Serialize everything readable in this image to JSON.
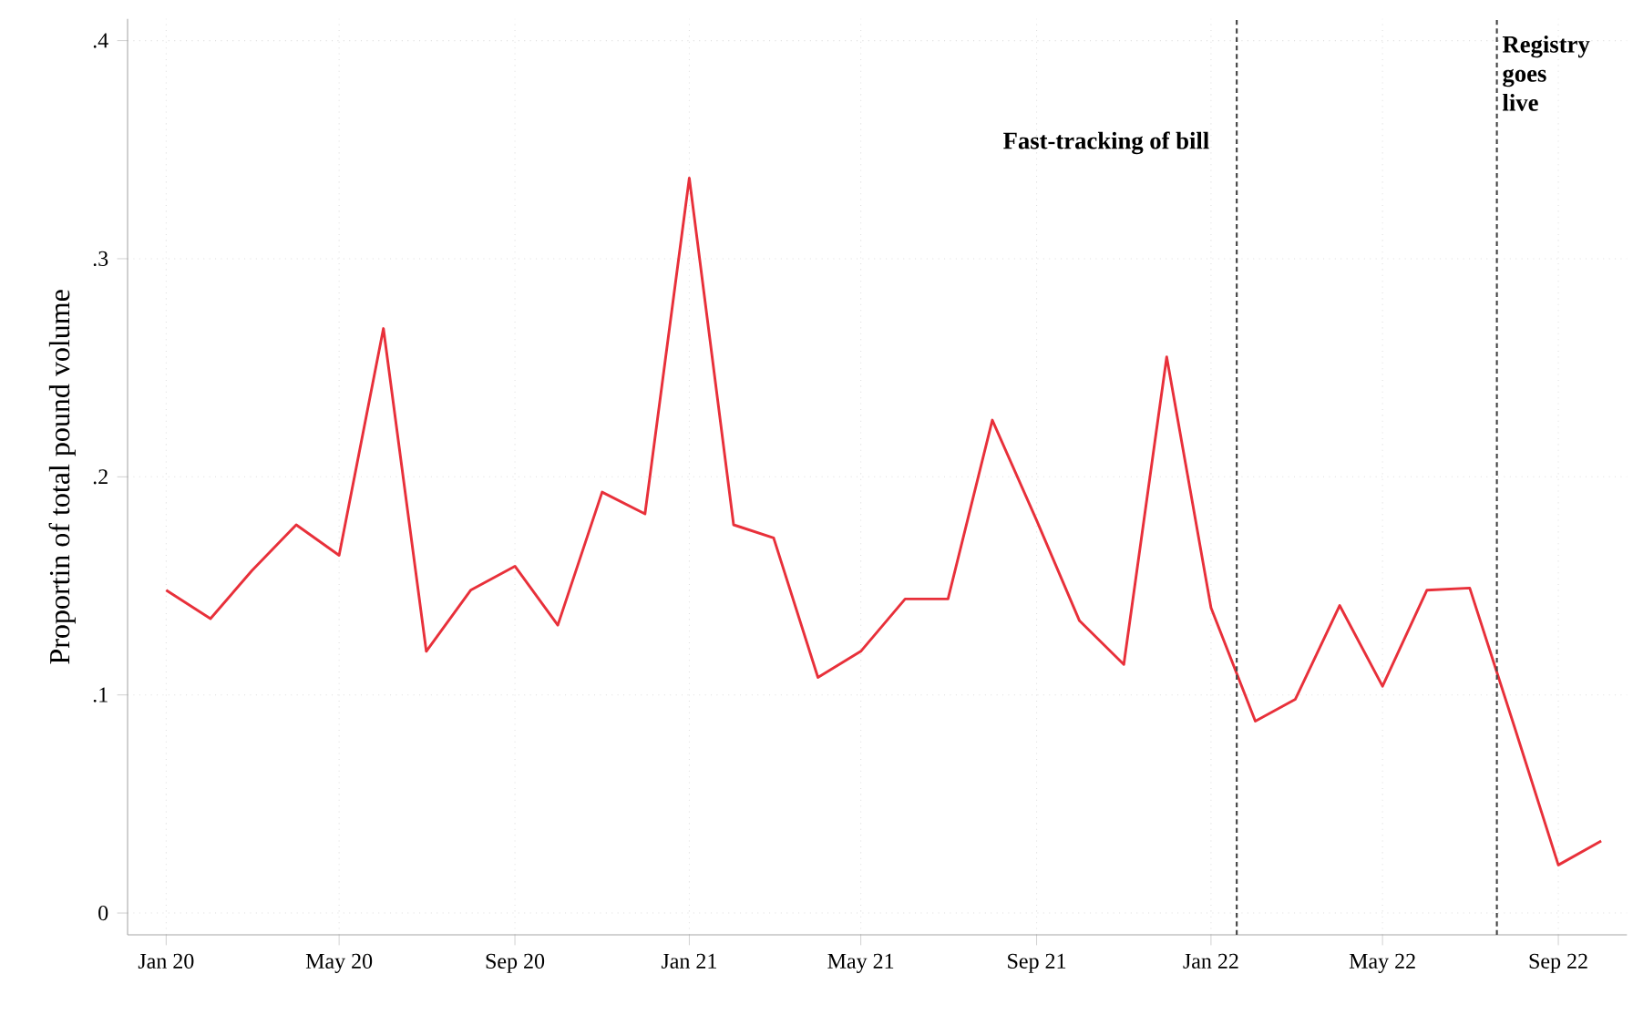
{
  "chart_data": {
    "type": "line",
    "ylabel": "Proportin of total pound volume",
    "x": [
      "2020-01",
      "2020-02",
      "2020-03",
      "2020-04",
      "2020-05",
      "2020-06",
      "2020-07",
      "2020-08",
      "2020-09",
      "2020-10",
      "2020-11",
      "2020-12",
      "2021-01",
      "2021-02",
      "2021-03",
      "2021-04",
      "2021-05",
      "2021-06",
      "2021-07",
      "2021-08",
      "2021-09",
      "2021-10",
      "2021-11",
      "2021-12",
      "2022-01",
      "2022-02",
      "2022-03",
      "2022-04",
      "2022-05",
      "2022-06",
      "2022-07",
      "2022-08",
      "2022-09",
      "2022-10"
    ],
    "series": [
      {
        "color": "#e8303a",
        "values": [
          0.148,
          0.135,
          0.157,
          0.178,
          0.164,
          0.268,
          0.12,
          0.148,
          0.159,
          0.132,
          0.193,
          0.183,
          0.337,
          0.178,
          0.172,
          0.108,
          0.12,
          0.144,
          0.144,
          0.226,
          0.18,
          0.134,
          0.114,
          0.255,
          0.14,
          0.088,
          0.098,
          0.141,
          0.104,
          0.148,
          0.149,
          0.086,
          0.022,
          0.033
        ]
      }
    ],
    "xlim": [
      "2019-12-05",
      "2022-10-19"
    ],
    "xticks": [
      {
        "value": "2020-01",
        "label": "Jan 20"
      },
      {
        "value": "2020-05",
        "label": "May 20"
      },
      {
        "value": "2020-09",
        "label": "Sep 20"
      },
      {
        "value": "2021-01",
        "label": "Jan 21"
      },
      {
        "value": "2021-05",
        "label": "May 21"
      },
      {
        "value": "2021-09",
        "label": "Sep 21"
      },
      {
        "value": "2022-01",
        "label": "Jan 22"
      },
      {
        "value": "2022-05",
        "label": "May 22"
      },
      {
        "value": "2022-09",
        "label": "Sep 22"
      }
    ],
    "ylim": [
      -0.01,
      0.41
    ],
    "yticks": [
      {
        "value": 0,
        "label": "0"
      },
      {
        "value": 0.1,
        "label": ".1"
      },
      {
        "value": 0.2,
        "label": ".2"
      },
      {
        "value": 0.3,
        "label": ".3"
      },
      {
        "value": 0.4,
        "label": ".4"
      }
    ],
    "ref_lines": [
      {
        "axis": "x",
        "value": "2022-01-19",
        "label": "Fast-tracking of bill",
        "color": "#444444",
        "line_style": "dashed"
      },
      {
        "axis": "x",
        "value": "2022-07-20",
        "label": "Registry goes live",
        "color": "#444444",
        "line_style": "dashed"
      }
    ],
    "grid": true,
    "marker": "none",
    "line_style": "solid"
  }
}
